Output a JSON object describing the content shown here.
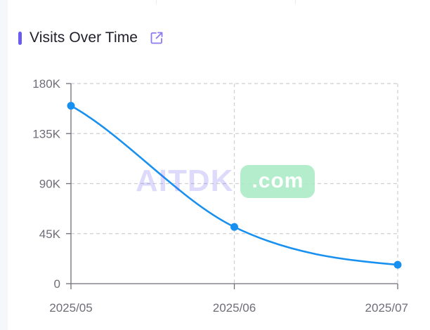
{
  "card": {
    "title": "Visits Over Time",
    "accent_color": "#6a5cf0",
    "link_icon": "external-link-icon",
    "link_icon_color": "#8b7cf0"
  },
  "watermark": {
    "main": "AITDK",
    "suffix": ".com",
    "main_color": "#6a5cf0",
    "pill_color": "#a8ebc4"
  },
  "chart_data": {
    "type": "line",
    "categories": [
      "2025/05",
      "2025/06",
      "2025/07"
    ],
    "series": [
      {
        "values": [
          160000,
          51000,
          17000
        ]
      }
    ],
    "y_ticks": [
      0,
      45000,
      90000,
      135000,
      180000
    ],
    "y_tick_labels": [
      "0",
      "45K",
      "90K",
      "135K",
      "180K"
    ],
    "ylim": [
      0,
      180000
    ],
    "smooth": true,
    "grid": true,
    "line_color": "#1890f0",
    "grid_color": "#cfcfd4",
    "axis_color": "#6e6e78"
  }
}
